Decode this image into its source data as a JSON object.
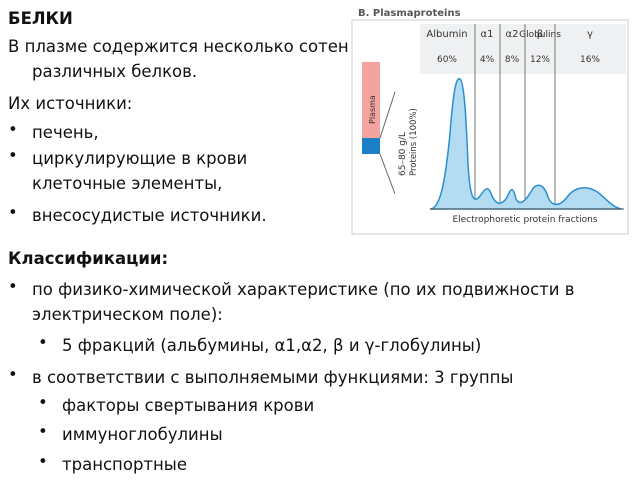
{
  "title": "БЕЛКИ",
  "intro": "В плазме содержится несколько сотен различных белков.",
  "sources_heading": "Их источники:",
  "sources": [
    "печень,",
    "циркулирующие в крови клеточные элементы,",
    "внесосудистые источники."
  ],
  "figure": {
    "title": "B. Plasmaproteins",
    "group_label": "Globulins",
    "fractions": [
      {
        "name": "Albumin",
        "percent": "60%"
      },
      {
        "name": "α1",
        "percent": "4%"
      },
      {
        "name": "α2",
        "percent": "8%"
      },
      {
        "name": "β",
        "percent": "12%"
      },
      {
        "name": "γ",
        "percent": "16%"
      }
    ],
    "plasma_label": "Plasma",
    "concentration": "65–80 g/L",
    "proteins_label": "Proteins (100%)",
    "axis_label": "Electrophoretic protein fractions"
  },
  "classification_heading": "Классификации:",
  "classifications": [
    {
      "text": "по физико-химической характеристике (по их подвижности в электрическом поле):",
      "items": [
        "5 фракций (альбумины, α1,α2, β и γ-глобулины)"
      ]
    },
    {
      "text": "в соответствии с выполняемыми функциями: 3 группы",
      "items": [
        "факторы свертывания крови",
        "иммуноглобулины",
        "транспортные"
      ]
    }
  ]
}
